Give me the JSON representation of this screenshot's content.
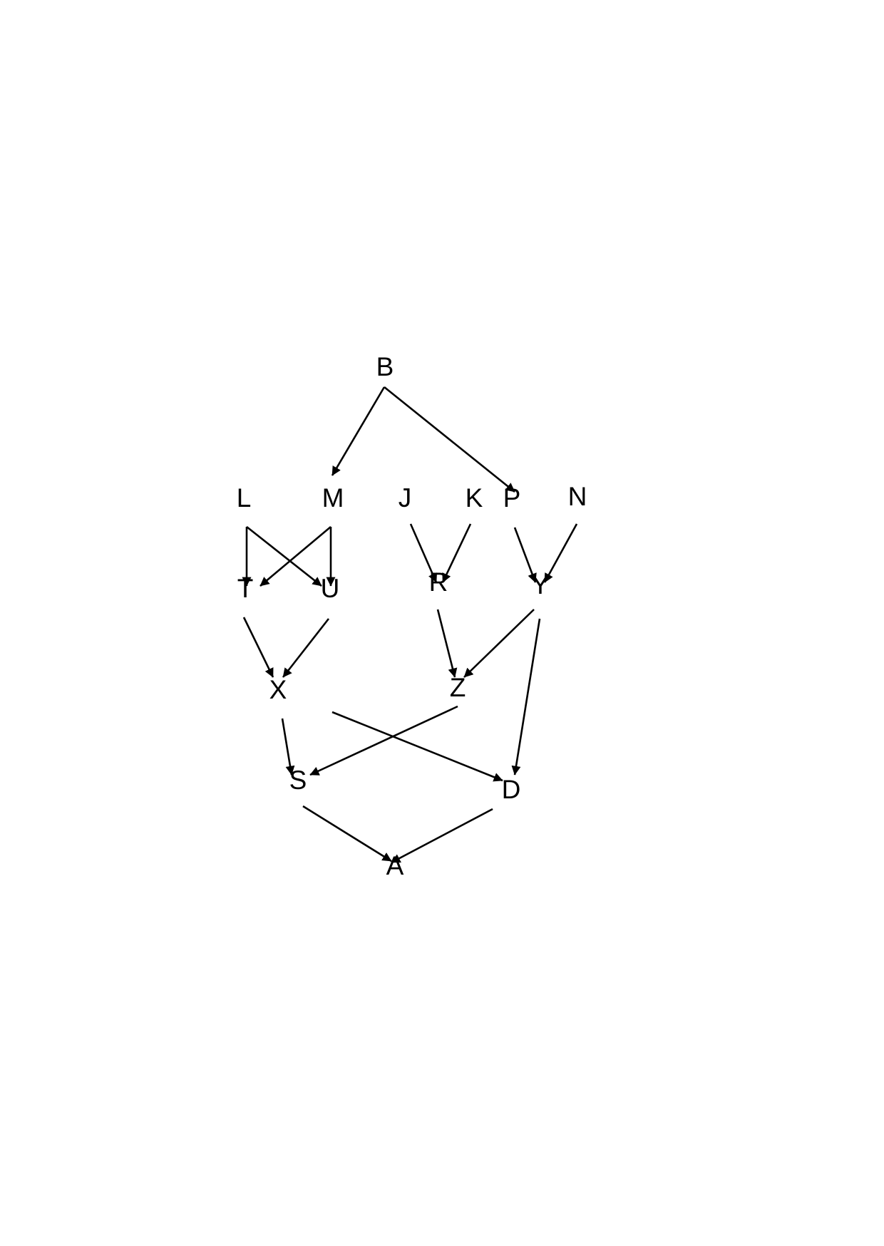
{
  "diagram": {
    "nodes": [
      {
        "id": "B",
        "label": "B"
      },
      {
        "id": "L",
        "label": "L"
      },
      {
        "id": "M",
        "label": "M"
      },
      {
        "id": "J",
        "label": "J"
      },
      {
        "id": "K",
        "label": "K"
      },
      {
        "id": "P",
        "label": "P"
      },
      {
        "id": "N",
        "label": "N"
      },
      {
        "id": "T",
        "label": "T"
      },
      {
        "id": "U",
        "label": "U"
      },
      {
        "id": "R",
        "label": "R"
      },
      {
        "id": "Y",
        "label": "Y"
      },
      {
        "id": "X",
        "label": "X"
      },
      {
        "id": "Z",
        "label": "Z"
      },
      {
        "id": "S",
        "label": "S"
      },
      {
        "id": "D",
        "label": "D"
      },
      {
        "id": "A",
        "label": "A"
      }
    ],
    "edges": [
      {
        "from": "B",
        "to": "M"
      },
      {
        "from": "B",
        "to": "P"
      },
      {
        "from": "L",
        "to": "T"
      },
      {
        "from": "L",
        "to": "U"
      },
      {
        "from": "M",
        "to": "T"
      },
      {
        "from": "M",
        "to": "U"
      },
      {
        "from": "J",
        "to": "R"
      },
      {
        "from": "K",
        "to": "R"
      },
      {
        "from": "P",
        "to": "Y"
      },
      {
        "from": "N",
        "to": "Y"
      },
      {
        "from": "T",
        "to": "X"
      },
      {
        "from": "U",
        "to": "X"
      },
      {
        "from": "R",
        "to": "Z"
      },
      {
        "from": "Y",
        "to": "Z"
      },
      {
        "from": "Y",
        "to": "D"
      },
      {
        "from": "X",
        "to": "S"
      },
      {
        "from": "X",
        "to": "D"
      },
      {
        "from": "Z",
        "to": "S"
      },
      {
        "from": "S",
        "to": "A"
      },
      {
        "from": "D",
        "to": "A"
      }
    ]
  }
}
